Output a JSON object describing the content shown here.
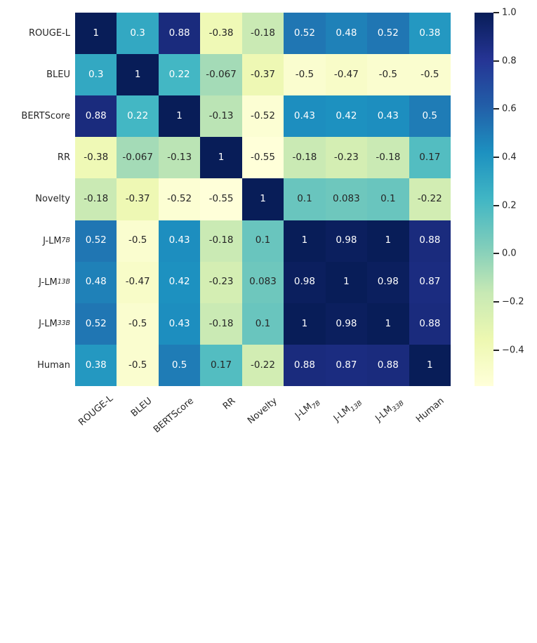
{
  "chart_data": {
    "type": "heatmap",
    "title": "",
    "xlabel": "",
    "ylabel": "",
    "categories": [
      "ROUGE-L",
      "BLEU",
      "BERTScore",
      "RR",
      "Novelty",
      "J-LM_{7B}",
      "J-LM_{13B}",
      "J-LM_{33B}",
      "Human"
    ],
    "matrix": [
      [
        1,
        0.3,
        0.88,
        -0.38,
        -0.18,
        0.52,
        0.48,
        0.52,
        0.38
      ],
      [
        0.3,
        1,
        0.22,
        -0.067,
        -0.37,
        -0.5,
        -0.47,
        -0.5,
        -0.5
      ],
      [
        0.88,
        0.22,
        1,
        -0.13,
        -0.52,
        0.43,
        0.42,
        0.43,
        0.5
      ],
      [
        -0.38,
        -0.067,
        -0.13,
        1,
        -0.55,
        -0.18,
        -0.23,
        -0.18,
        0.17
      ],
      [
        -0.18,
        -0.37,
        -0.52,
        -0.55,
        1,
        0.1,
        0.083,
        0.1,
        -0.22
      ],
      [
        0.52,
        -0.5,
        0.43,
        -0.18,
        0.1,
        1,
        0.98,
        1,
        0.88
      ],
      [
        0.48,
        -0.47,
        0.42,
        -0.23,
        0.083,
        0.98,
        1,
        0.98,
        0.87
      ],
      [
        0.52,
        -0.5,
        0.43,
        -0.18,
        0.1,
        1,
        0.98,
        1,
        0.88
      ],
      [
        0.38,
        -0.5,
        0.5,
        0.17,
        -0.22,
        0.88,
        0.87,
        0.88,
        1
      ]
    ],
    "vmin": -0.55,
    "vmax": 1.0,
    "colormap": {
      "name": "YlGnBu",
      "stops": [
        "#ffffd9",
        "#edf8b1",
        "#c7e9b4",
        "#7fcdbb",
        "#41b6c4",
        "#1d91c0",
        "#225ea8",
        "#253494",
        "#081d58"
      ]
    },
    "colorbar": {
      "tick_values": [
        1.0,
        0.8,
        0.6,
        0.4,
        0.2,
        0.0,
        -0.2,
        -0.4
      ],
      "tick_labels": [
        "1.0",
        "0.8",
        "0.6",
        "0.4",
        "0.2",
        "0.0",
        "−0.2",
        "−0.4"
      ],
      "position": "right"
    },
    "annotation_colors": {
      "light_text": "#ffffff",
      "dark_text": "#262626",
      "luminance_threshold": 0.408
    },
    "background": "#ffffff",
    "grid": false,
    "legend": false
  }
}
